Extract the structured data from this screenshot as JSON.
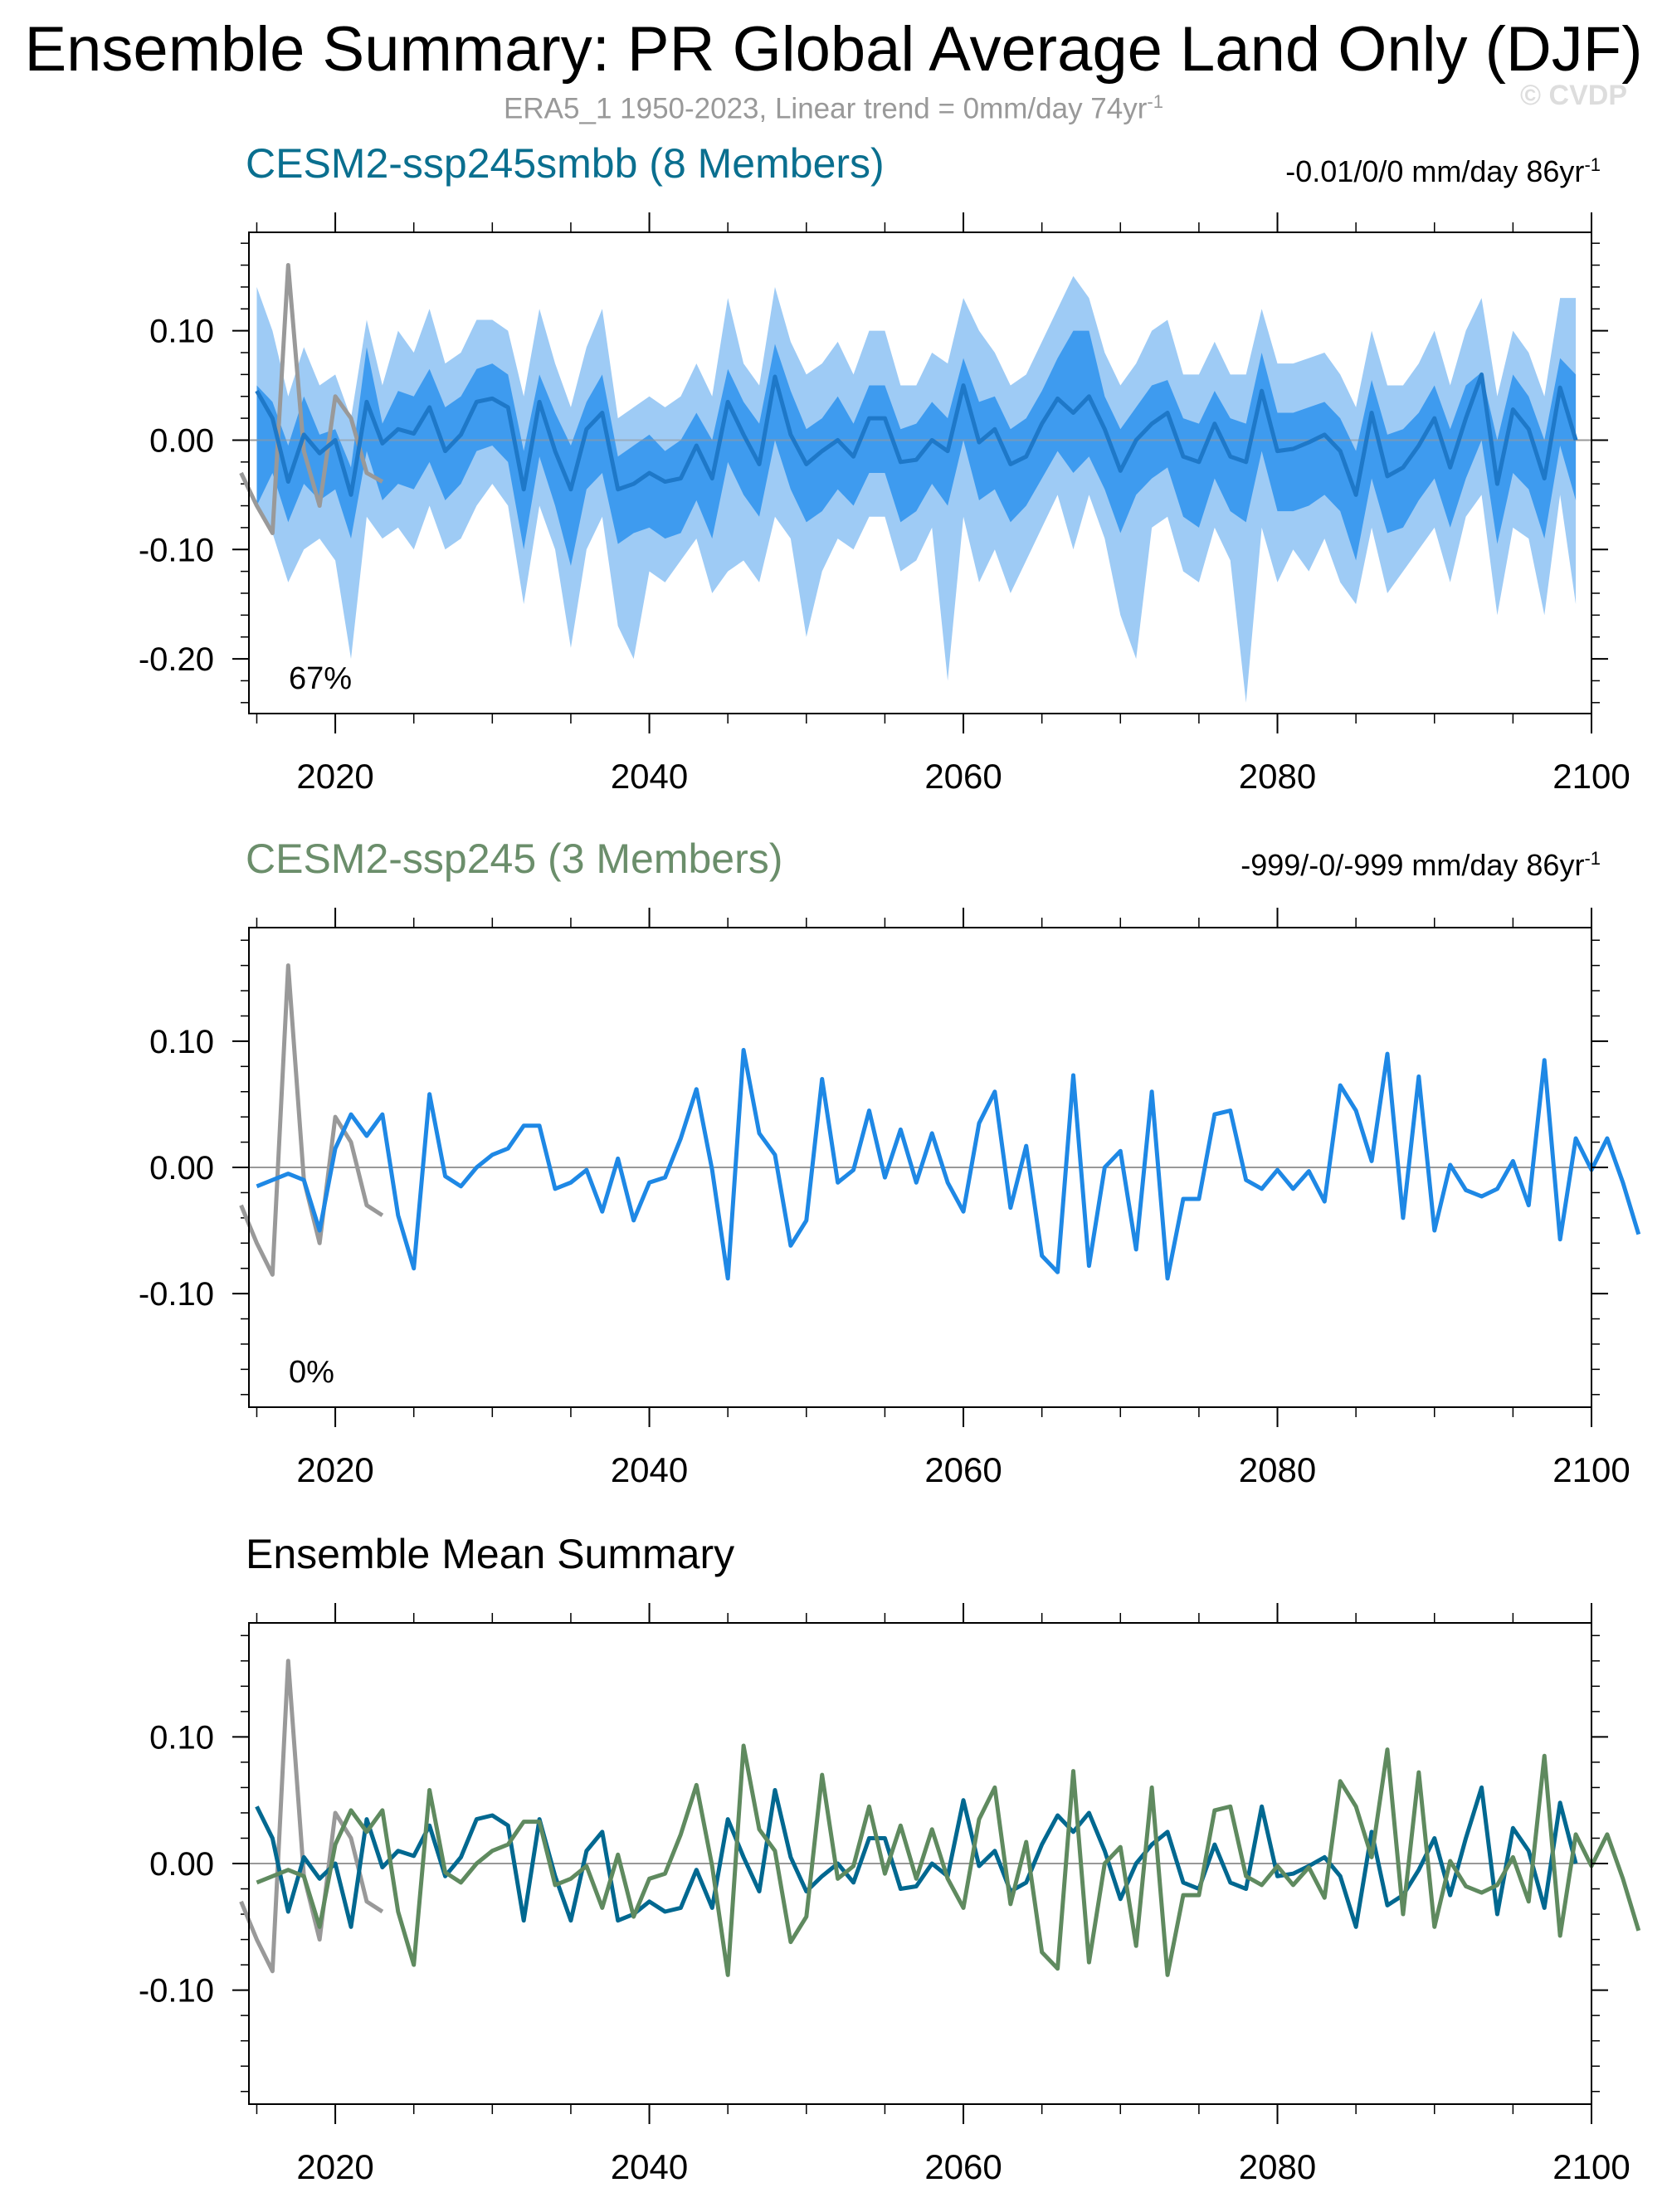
{
  "title": "Ensemble Summary: PR Global Average Land Only (DJF)",
  "subtitle": "ERA5_1 1950-2023, Linear trend = 0mm/day 74yr",
  "subtitle_sup": "-1",
  "watermark": "© CVDP",
  "colors": {
    "obs": "#999999",
    "smbb_mean": "#1e78c8",
    "band_outer": "#9ecbf5",
    "band_inner": "#3e9bef",
    "ssp245_line": "#1e88e5",
    "smbb_ensmean": "#006890",
    "ssp245_ensmean": "#5f8a5f",
    "zero": "#999999"
  },
  "chart_data": [
    {
      "type": "area",
      "panel": "CESM2-ssp245smbb",
      "title": "CESM2-ssp245smbb (8 Members)",
      "title_color": "#0a6f8f",
      "trend_text": "-0.01/0/0 mm/day 86yr",
      "trend_sup": "-1",
      "percent_label": "67%",
      "xlim": [
        2014.5,
        2100
      ],
      "ylim": [
        -0.25,
        0.19
      ],
      "xticks": [
        2020,
        2040,
        2060,
        2080,
        2100
      ],
      "xtick_labels": [
        "2020",
        "2040",
        "2060",
        "2080",
        "2100"
      ],
      "yticks": [
        0.1,
        0.0,
        -0.1,
        -0.2
      ],
      "ytick_labels": [
        "0.10",
        "0.00",
        "-0.10",
        "-0.20"
      ],
      "x_start": 2015,
      "mean": [
        0.045,
        0.02,
        -0.038,
        0.005,
        -0.012,
        0.0,
        -0.05,
        0.035,
        -0.003,
        0.01,
        0.006,
        0.03,
        -0.01,
        0.005,
        0.035,
        0.038,
        0.03,
        -0.045,
        0.035,
        -0.01,
        -0.045,
        0.01,
        0.025,
        -0.045,
        -0.04,
        -0.03,
        -0.038,
        -0.035,
        -0.005,
        -0.035,
        0.035,
        0.005,
        -0.022,
        0.058,
        0.005,
        -0.022,
        -0.01,
        0.0,
        -0.015,
        0.02,
        0.02,
        -0.02,
        -0.018,
        0.0,
        -0.01,
        0.05,
        -0.002,
        0.01,
        -0.022,
        -0.015,
        0.015,
        0.038,
        0.025,
        0.04,
        0.01,
        -0.028,
        0.0,
        0.015,
        0.025,
        -0.015,
        -0.02,
        0.015,
        -0.015,
        -0.02,
        0.045,
        -0.01,
        -0.008,
        -0.002,
        0.005,
        -0.01,
        -0.05,
        0.025,
        -0.033,
        -0.025,
        -0.005,
        0.02,
        -0.025,
        0.02,
        0.06,
        -0.04,
        0.028,
        0.01,
        -0.035,
        0.048,
        0.0
      ],
      "inner_top": [
        0.05,
        0.035,
        -0.005,
        0.04,
        0.005,
        0.01,
        -0.025,
        0.085,
        0.015,
        0.045,
        0.04,
        0.065,
        0.03,
        0.04,
        0.065,
        0.07,
        0.06,
        -0.01,
        0.06,
        0.025,
        -0.005,
        0.035,
        0.06,
        -0.015,
        -0.005,
        0.005,
        -0.01,
        0.0,
        0.025,
        0.0,
        0.065,
        0.035,
        0.015,
        0.088,
        0.045,
        0.01,
        0.02,
        0.04,
        0.015,
        0.05,
        0.05,
        0.01,
        0.015,
        0.035,
        0.02,
        0.075,
        0.035,
        0.04,
        0.01,
        0.02,
        0.045,
        0.075,
        0.1,
        0.1,
        0.04,
        0.01,
        0.03,
        0.05,
        0.055,
        0.02,
        0.015,
        0.045,
        0.02,
        0.015,
        0.08,
        0.025,
        0.025,
        0.03,
        0.035,
        0.02,
        -0.01,
        0.055,
        0.005,
        0.01,
        0.025,
        0.05,
        0.01,
        0.05,
        0.062,
        0.0,
        0.06,
        0.04,
        0.0,
        0.075,
        0.06
      ],
      "inner_bottom": [
        -0.06,
        -0.03,
        -0.075,
        -0.04,
        -0.055,
        -0.045,
        -0.09,
        -0.01,
        -0.055,
        -0.04,
        -0.045,
        -0.02,
        -0.055,
        -0.04,
        -0.01,
        -0.005,
        -0.02,
        -0.1,
        -0.015,
        -0.06,
        -0.115,
        -0.045,
        -0.03,
        -0.095,
        -0.085,
        -0.08,
        -0.09,
        -0.085,
        -0.055,
        -0.09,
        -0.02,
        -0.05,
        -0.07,
        0.0,
        -0.045,
        -0.075,
        -0.065,
        -0.045,
        -0.06,
        -0.03,
        -0.03,
        -0.075,
        -0.065,
        -0.04,
        -0.06,
        0.0,
        -0.055,
        -0.045,
        -0.075,
        -0.06,
        -0.035,
        -0.01,
        -0.03,
        -0.015,
        -0.045,
        -0.085,
        -0.05,
        -0.035,
        -0.025,
        -0.07,
        -0.08,
        -0.035,
        -0.065,
        -0.075,
        -0.01,
        -0.065,
        -0.065,
        -0.06,
        -0.05,
        -0.065,
        -0.11,
        -0.035,
        -0.085,
        -0.08,
        -0.055,
        -0.035,
        -0.08,
        -0.035,
        0.0,
        -0.095,
        -0.03,
        -0.045,
        -0.09,
        -0.005,
        -0.055
      ],
      "outer_top": [
        0.14,
        0.1,
        0.04,
        0.085,
        0.05,
        0.06,
        0.02,
        0.11,
        0.05,
        0.1,
        0.08,
        0.12,
        0.07,
        0.08,
        0.11,
        0.11,
        0.1,
        0.04,
        0.12,
        0.07,
        0.03,
        0.085,
        0.12,
        0.02,
        0.03,
        0.04,
        0.03,
        0.04,
        0.07,
        0.04,
        0.13,
        0.07,
        0.05,
        0.14,
        0.09,
        0.06,
        0.07,
        0.09,
        0.06,
        0.1,
        0.1,
        0.05,
        0.05,
        0.08,
        0.07,
        0.13,
        0.1,
        0.08,
        0.05,
        0.06,
        0.09,
        0.12,
        0.15,
        0.13,
        0.08,
        0.05,
        0.07,
        0.1,
        0.11,
        0.06,
        0.06,
        0.09,
        0.06,
        0.06,
        0.12,
        0.07,
        0.07,
        0.075,
        0.08,
        0.06,
        0.03,
        0.1,
        0.05,
        0.05,
        0.07,
        0.1,
        0.05,
        0.1,
        0.13,
        0.04,
        0.1,
        0.08,
        0.04,
        0.13,
        0.13
      ],
      "outer_bottom": [
        -0.06,
        -0.085,
        -0.13,
        -0.1,
        -0.09,
        -0.11,
        -0.2,
        -0.07,
        -0.09,
        -0.08,
        -0.1,
        -0.06,
        -0.1,
        -0.09,
        -0.06,
        -0.04,
        -0.06,
        -0.15,
        -0.06,
        -0.1,
        -0.19,
        -0.1,
        -0.07,
        -0.17,
        -0.2,
        -0.12,
        -0.13,
        -0.11,
        -0.09,
        -0.14,
        -0.12,
        -0.11,
        -0.13,
        -0.07,
        -0.09,
        -0.18,
        -0.12,
        -0.09,
        -0.1,
        -0.07,
        -0.07,
        -0.12,
        -0.11,
        -0.08,
        -0.22,
        -0.07,
        -0.13,
        -0.1,
        -0.14,
        -0.11,
        -0.08,
        -0.05,
        -0.1,
        -0.05,
        -0.09,
        -0.16,
        -0.2,
        -0.08,
        -0.07,
        -0.12,
        -0.13,
        -0.08,
        -0.11,
        -0.24,
        -0.08,
        -0.13,
        -0.1,
        -0.12,
        -0.09,
        -0.13,
        -0.15,
        -0.08,
        -0.14,
        -0.12,
        -0.1,
        -0.08,
        -0.13,
        -0.07,
        -0.05,
        -0.16,
        -0.08,
        -0.09,
        -0.16,
        -0.05,
        -0.15
      ],
      "obs_x_start": 2014,
      "obs": [
        -0.03,
        -0.06,
        -0.085,
        0.16,
        -0.01,
        -0.06,
        0.04,
        0.02,
        -0.03,
        -0.038
      ]
    },
    {
      "type": "line",
      "panel": "CESM2-ssp245",
      "title": "CESM2-ssp245 (3 Members)",
      "title_color": "#6b8e6b",
      "trend_text": "-999/-0/-999 mm/day 86yr",
      "trend_sup": "-1",
      "percent_label": "0%",
      "xlim": [
        2014.5,
        2100
      ],
      "ylim": [
        -0.19,
        0.19
      ],
      "xticks": [
        2020,
        2040,
        2060,
        2080,
        2100
      ],
      "xtick_labels": [
        "2020",
        "2040",
        "2060",
        "2080",
        "2100"
      ],
      "yticks": [
        0.1,
        0.0,
        -0.1
      ],
      "ytick_labels": [
        "0.10",
        "0.00",
        "-0.10"
      ],
      "x_start": 2015,
      "mean": [
        -0.015,
        -0.01,
        -0.005,
        -0.01,
        -0.05,
        0.015,
        0.042,
        0.025,
        0.042,
        -0.038,
        -0.08,
        0.058,
        -0.007,
        -0.015,
        0.0,
        0.01,
        0.015,
        0.033,
        0.033,
        -0.017,
        -0.012,
        -0.002,
        -0.035,
        0.007,
        -0.042,
        -0.012,
        -0.008,
        0.023,
        0.062,
        -0.002,
        -0.088,
        0.093,
        0.027,
        0.01,
        -0.062,
        -0.042,
        0.07,
        -0.012,
        -0.002,
        0.045,
        -0.008,
        0.03,
        -0.012,
        0.027,
        -0.012,
        -0.035,
        0.035,
        0.06,
        -0.032,
        0.017,
        -0.07,
        -0.083,
        0.073,
        -0.078,
        0.0,
        0.013,
        -0.065,
        0.06,
        -0.088,
        -0.025,
        -0.025,
        0.042,
        0.045,
        -0.01,
        -0.017,
        -0.002,
        -0.017,
        -0.003,
        -0.027,
        0.065,
        0.045,
        0.005,
        0.09,
        -0.04,
        0.072,
        -0.05,
        0.002,
        -0.018,
        -0.023,
        -0.017,
        0.005,
        -0.03,
        0.085,
        -0.057,
        0.023,
        -0.002,
        0.023,
        -0.012,
        -0.053
      ],
      "obs_x_start": 2014,
      "obs": [
        -0.03,
        -0.06,
        -0.085,
        0.16,
        -0.01,
        -0.06,
        0.04,
        0.02,
        -0.03,
        -0.038
      ]
    },
    {
      "type": "line",
      "panel": "Ensemble Mean Summary",
      "title": "Ensemble Mean Summary",
      "title_color": "#000000",
      "trend_text": "",
      "trend_sup": "",
      "percent_label": "",
      "xlim": [
        2014.5,
        2100
      ],
      "ylim": [
        -0.19,
        0.19
      ],
      "xticks": [
        2020,
        2040,
        2060,
        2080,
        2100
      ],
      "xtick_labels": [
        "2020",
        "2040",
        "2060",
        "2080",
        "2100"
      ],
      "yticks": [
        0.1,
        0.0,
        -0.1
      ],
      "ytick_labels": [
        "0.10",
        "0.00",
        "-0.10"
      ],
      "series": [
        {
          "key": "smbb",
          "x_start": 2015,
          "values": [
            0.045,
            0.02,
            -0.038,
            0.005,
            -0.012,
            0.0,
            -0.05,
            0.035,
            -0.003,
            0.01,
            0.006,
            0.03,
            -0.01,
            0.005,
            0.035,
            0.038,
            0.03,
            -0.045,
            0.035,
            -0.01,
            -0.045,
            0.01,
            0.025,
            -0.045,
            -0.04,
            -0.03,
            -0.038,
            -0.035,
            -0.005,
            -0.035,
            0.035,
            0.005,
            -0.022,
            0.058,
            0.005,
            -0.022,
            -0.01,
            0.0,
            -0.015,
            0.02,
            0.02,
            -0.02,
            -0.018,
            0.0,
            -0.01,
            0.05,
            -0.002,
            0.01,
            -0.022,
            -0.015,
            0.015,
            0.038,
            0.025,
            0.04,
            0.01,
            -0.028,
            0.0,
            0.015,
            0.025,
            -0.015,
            -0.02,
            0.015,
            -0.015,
            -0.02,
            0.045,
            -0.01,
            -0.008,
            -0.002,
            0.005,
            -0.01,
            -0.05,
            0.025,
            -0.033,
            -0.025,
            -0.005,
            0.02,
            -0.025,
            0.02,
            0.06,
            -0.04,
            0.028,
            0.01,
            -0.035,
            0.048,
            0.0
          ]
        },
        {
          "key": "ssp245",
          "x_start": 2015,
          "values": [
            -0.015,
            -0.01,
            -0.005,
            -0.01,
            -0.05,
            0.015,
            0.042,
            0.025,
            0.042,
            -0.038,
            -0.08,
            0.058,
            -0.007,
            -0.015,
            0.0,
            0.01,
            0.015,
            0.033,
            0.033,
            -0.017,
            -0.012,
            -0.002,
            -0.035,
            0.007,
            -0.042,
            -0.012,
            -0.008,
            0.023,
            0.062,
            -0.002,
            -0.088,
            0.093,
            0.027,
            0.01,
            -0.062,
            -0.042,
            0.07,
            -0.012,
            -0.002,
            0.045,
            -0.008,
            0.03,
            -0.012,
            0.027,
            -0.012,
            -0.035,
            0.035,
            0.06,
            -0.032,
            0.017,
            -0.07,
            -0.083,
            0.073,
            -0.078,
            0.0,
            0.013,
            -0.065,
            0.06,
            -0.088,
            -0.025,
            -0.025,
            0.042,
            0.045,
            -0.01,
            -0.017,
            -0.002,
            -0.017,
            -0.003,
            -0.027,
            0.065,
            0.045,
            0.005,
            0.09,
            -0.04,
            0.072,
            -0.05,
            0.002,
            -0.018,
            -0.023,
            -0.017,
            0.005,
            -0.03,
            0.085,
            -0.057,
            0.023,
            -0.002,
            0.023,
            -0.012,
            -0.053
          ]
        }
      ],
      "obs_x_start": 2014,
      "obs": [
        -0.03,
        -0.06,
        -0.085,
        0.16,
        -0.01,
        -0.06,
        0.04,
        0.02,
        -0.03,
        -0.038
      ]
    }
  ]
}
